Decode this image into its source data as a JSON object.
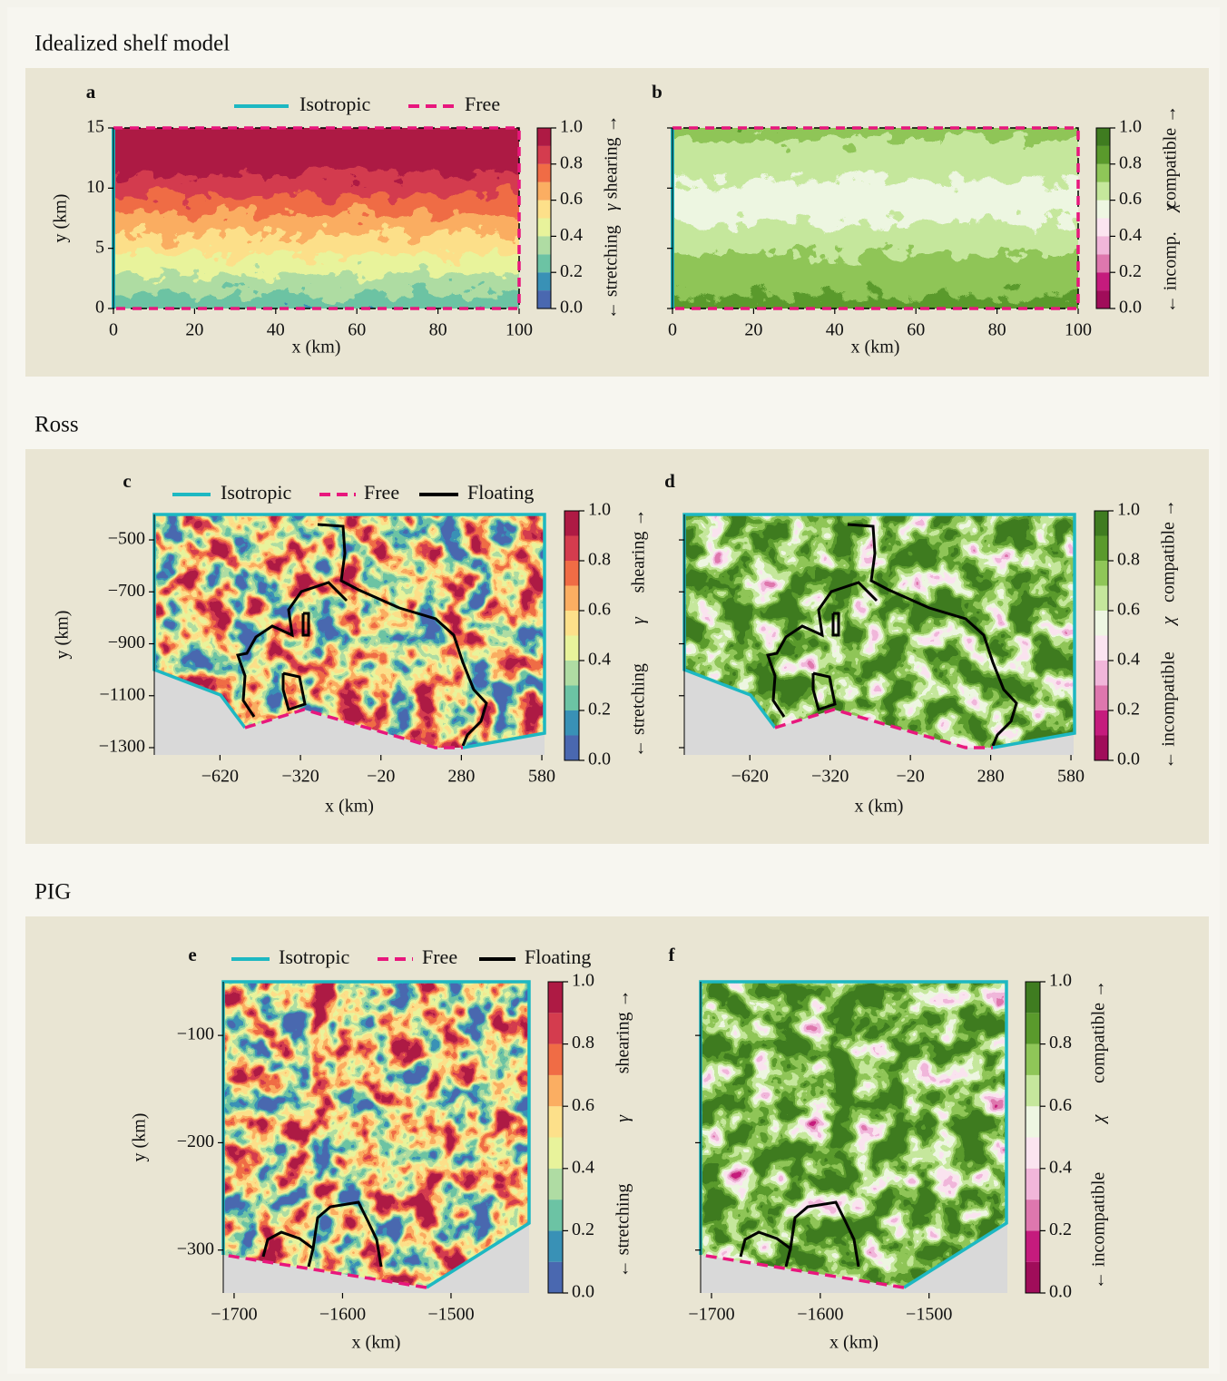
{
  "sections": [
    {
      "title": "Idealized shelf model"
    },
    {
      "title": "Ross"
    },
    {
      "title": "PIG"
    }
  ],
  "chart_data": [
    {
      "type": "contour",
      "panel": "a",
      "xlabel": "x (km)",
      "ylabel": "y (km)",
      "xlim": [
        0,
        100
      ],
      "ylim": [
        0,
        15
      ],
      "xticks": [
        0,
        20,
        40,
        60,
        80,
        100
      ],
      "yticks": [
        0,
        5,
        10,
        15
      ],
      "ytick_labels": true,
      "series": [
        {
          "name": "Isotropic",
          "color": "#1db8c2"
        },
        {
          "name": "Free",
          "color": "#e8177d",
          "dashed": true
        }
      ],
      "colorbar": {
        "lim": [
          0,
          1
        ],
        "ticks": [
          {
            "value": 0,
            "label": "0.0"
          },
          0.2,
          0.4,
          0.6,
          0.8,
          {
            "value": 1,
            "label": "1.0"
          }
        ],
        "colors": [
          "#4a68b0",
          "#3991b6",
          "#6cc3a4",
          "#afdca3",
          "#e8f39b",
          "#fde08a",
          "#fbae62",
          "#f06c45",
          "#d43c4e",
          "#ae1a44"
        ],
        "label_low": "← stretching",
        "label_symbol": "γ",
        "label_high": "shearing →"
      }
    },
    {
      "type": "contour",
      "panel": "b",
      "xlabel": "x (km)",
      "xlim": [
        0,
        100
      ],
      "ylim": [
        0,
        15
      ],
      "xticks": [
        0,
        20,
        40,
        60,
        80,
        100
      ],
      "yticks": [
        0,
        5,
        10,
        15
      ],
      "ytick_labels": false,
      "colorbar": {
        "lim": [
          0,
          1
        ],
        "ticks": [
          {
            "value": 0,
            "label": "0.0"
          },
          0.2,
          0.4,
          0.6,
          0.8,
          {
            "value": 1,
            "label": "1.0"
          }
        ],
        "colors": [
          "#a00d5a",
          "#c51b7d",
          "#de77ae",
          "#f1b6da",
          "#fbe4f0",
          "#eef6e2",
          "#c5e79c",
          "#8fc658",
          "#5a9a2c",
          "#3f7c20"
        ],
        "label_low": "← incomp.",
        "label_symbol": "χ",
        "label_high": "compatible →"
      }
    },
    {
      "type": "contour",
      "panel": "c",
      "xlabel": "x (km)",
      "ylabel": "y (km)",
      "xlim": [
        -865,
        590
      ],
      "ylim": [
        -1328,
        -402
      ],
      "xticks": [
        {
          "value": -620,
          "label": "−620"
        },
        {
          "value": -320,
          "label": "−320"
        },
        {
          "value": -20,
          "label": "−20"
        },
        280,
        580
      ],
      "yticks": [
        {
          "value": -500,
          "label": "−500"
        },
        {
          "value": -700,
          "label": "−700"
        },
        {
          "value": -900,
          "label": "−900"
        },
        {
          "value": -1100,
          "label": "−1100"
        },
        {
          "value": -1300,
          "label": "−1300"
        }
      ],
      "ytick_labels": true,
      "series": [
        {
          "name": "Isotropic",
          "color": "#1db8c2"
        },
        {
          "name": "Free",
          "color": "#e8177d",
          "dashed": true
        },
        {
          "name": "Floating",
          "color": "#000000"
        }
      ],
      "colorbar": {
        "lim": [
          0,
          1
        ],
        "ticks": [
          {
            "value": 0,
            "label": "0.0"
          },
          0.2,
          0.4,
          0.6,
          0.8,
          {
            "value": 1,
            "label": "1.0"
          }
        ],
        "colors": [
          "#4a68b0",
          "#3991b6",
          "#6cc3a4",
          "#afdca3",
          "#e8f39b",
          "#fde08a",
          "#fbae62",
          "#f06c45",
          "#d43c4e",
          "#ae1a44"
        ],
        "label_low": "← stretching",
        "label_symbol": "γ",
        "label_high": "shearing →"
      }
    },
    {
      "type": "contour",
      "panel": "d",
      "xlabel": "x (km)",
      "xlim": [
        -865,
        590
      ],
      "ylim": [
        -1328,
        -402
      ],
      "xticks": [
        {
          "value": -620,
          "label": "−620"
        },
        {
          "value": -320,
          "label": "−320"
        },
        {
          "value": -20,
          "label": "−20"
        },
        280,
        580
      ],
      "yticks": [
        -500,
        -700,
        -900,
        -1100,
        -1300
      ],
      "ytick_labels": false,
      "colorbar": {
        "lim": [
          0,
          1
        ],
        "ticks": [
          {
            "value": 0,
            "label": "0.0"
          },
          0.2,
          0.4,
          0.6,
          0.8,
          {
            "value": 1,
            "label": "1.0"
          }
        ],
        "colors": [
          "#a00d5a",
          "#c51b7d",
          "#de77ae",
          "#f1b6da",
          "#fbe4f0",
          "#eef6e2",
          "#c5e79c",
          "#8fc658",
          "#5a9a2c",
          "#3f7c20"
        ],
        "label_low": "← incompatible",
        "label_symbol": "χ",
        "label_high": "compatible →"
      }
    },
    {
      "type": "contour",
      "panel": "e",
      "xlabel": "x (km)",
      "ylabel": "y (km)",
      "xlim": [
        -1710,
        -1428
      ],
      "ylim": [
        -340,
        -50
      ],
      "xticks": [
        {
          "value": -1700,
          "label": "−1700"
        },
        {
          "value": -1600,
          "label": "−1600"
        },
        {
          "value": -1500,
          "label": "−1500"
        }
      ],
      "yticks": [
        {
          "value": -100,
          "label": "−100"
        },
        {
          "value": -200,
          "label": "−200"
        },
        {
          "value": -300,
          "label": "−300"
        }
      ],
      "ytick_labels": true,
      "series": [
        {
          "name": "Isotropic",
          "color": "#1db8c2"
        },
        {
          "name": "Free",
          "color": "#e8177d",
          "dashed": true
        },
        {
          "name": "Floating",
          "color": "#000000"
        }
      ],
      "colorbar": {
        "lim": [
          0,
          1
        ],
        "ticks": [
          {
            "value": 0,
            "label": "0.0"
          },
          0.2,
          0.4,
          0.6,
          0.8,
          {
            "value": 1,
            "label": "1.0"
          }
        ],
        "colors": [
          "#4a68b0",
          "#3991b6",
          "#6cc3a4",
          "#afdca3",
          "#e8f39b",
          "#fde08a",
          "#fbae62",
          "#f06c45",
          "#d43c4e",
          "#ae1a44"
        ],
        "label_low": "← stretching",
        "label_symbol": "γ",
        "label_high": "shearing →"
      }
    },
    {
      "type": "contour",
      "panel": "f",
      "xlabel": "x (km)",
      "xlim": [
        -1710,
        -1428
      ],
      "ylim": [
        -340,
        -50
      ],
      "xticks": [
        {
          "value": -1700,
          "label": "−1700"
        },
        {
          "value": -1600,
          "label": "−1600"
        },
        {
          "value": -1500,
          "label": "−1500"
        }
      ],
      "yticks": [
        -100,
        -200,
        -300
      ],
      "ytick_labels": false,
      "colorbar": {
        "lim": [
          0,
          1
        ],
        "ticks": [
          {
            "value": 0,
            "label": "0.0"
          },
          0.2,
          0.4,
          0.6,
          0.8,
          {
            "value": 1,
            "label": "1.0"
          }
        ],
        "colors": [
          "#a00d5a",
          "#c51b7d",
          "#de77ae",
          "#f1b6da",
          "#fbe4f0",
          "#eef6e2",
          "#c5e79c",
          "#8fc658",
          "#5a9a2c",
          "#3f7c20"
        ],
        "label_low": "← incompatible",
        "label_symbol": "χ",
        "label_high": "compatible →"
      }
    }
  ]
}
